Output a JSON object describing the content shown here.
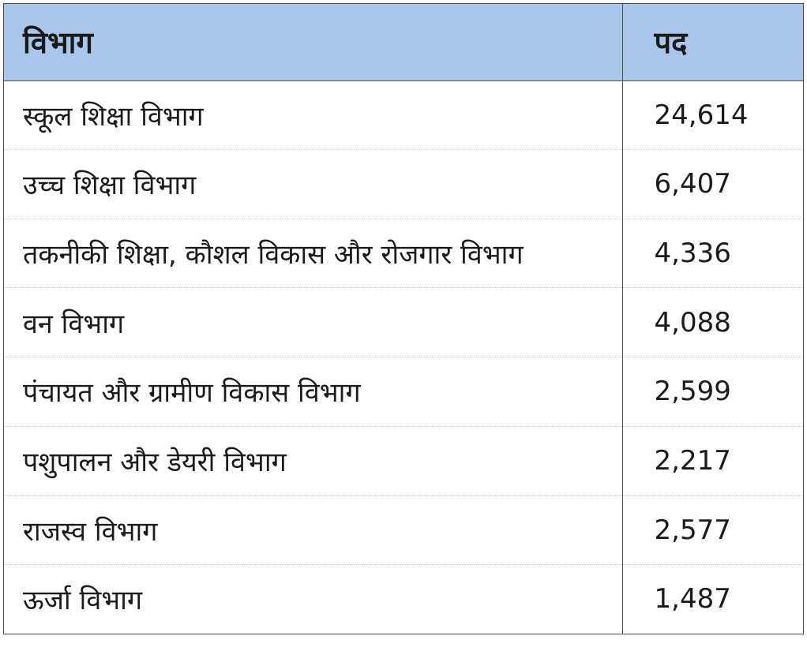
{
  "table": {
    "headers": {
      "department": "विभाग",
      "posts": "पद"
    },
    "rows": [
      {
        "department": "स्कूल शिक्षा विभाग",
        "posts": "24,614"
      },
      {
        "department": "उच्च शिक्षा विभाग",
        "posts": "6,407"
      },
      {
        "department": "तकनीकी शिक्षा, कौशल विकास और रोजगार विभाग",
        "posts": "4,336"
      },
      {
        "department": "वन विभाग",
        "posts": "4,088"
      },
      {
        "department": "पंचायत और ग्रामीण विकास विभाग",
        "posts": "2,599"
      },
      {
        "department": "पशुपालन और डेयरी विभाग",
        "posts": "2,217"
      },
      {
        "department": "राजस्व विभाग",
        "posts": "2,577"
      },
      {
        "department": "ऊर्जा विभाग",
        "posts": "1,487"
      }
    ]
  },
  "colors": {
    "header_background": "#a9c7ea",
    "border": "#4d4d4d",
    "row_divider": "#c9c9c9"
  }
}
